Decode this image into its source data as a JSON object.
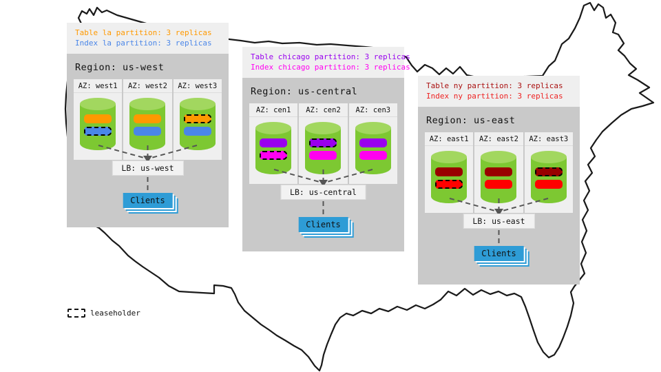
{
  "legend": {
    "label": "leaseholder"
  },
  "clients_label": "Clients",
  "colors": {
    "region_bg": "#c9c9c9",
    "panel_bg": "#efefef",
    "cylinder_body": "#7dc832",
    "cylinder_top": "#a2d75f",
    "clients_blue": "#2e9cd6",
    "connector_gray": "#555555",
    "map_outline": "#1a1a1a",
    "table_la_orange": "#ff9900",
    "index_la_blue": "#4a86e8",
    "table_chicago_purple": "#9900ee",
    "index_chicago_magenta": "#ff00f0",
    "table_ny_dark_red": "#990000",
    "index_ny_red": "#ff0000"
  },
  "regions": [
    {
      "title": "Region: us-west",
      "annotation": [
        {
          "text": "Table la partition: 3 replicas",
          "color": "#ff9900"
        },
        {
          "text": "Index la partition: 3 replicas",
          "color": "#4a86e8"
        }
      ],
      "azs": [
        {
          "label": "AZ: west1",
          "bars": [
            {
              "color": "#ff9900",
              "leaseholder": false
            },
            {
              "color": "#4a86e8",
              "leaseholder": true
            }
          ]
        },
        {
          "label": "AZ: west2",
          "bars": [
            {
              "color": "#ff9900",
              "leaseholder": false
            },
            {
              "color": "#4a86e8",
              "leaseholder": false
            }
          ]
        },
        {
          "label": "AZ: west3",
          "bars": [
            {
              "color": "#ff9900",
              "leaseholder": true
            },
            {
              "color": "#4a86e8",
              "leaseholder": false
            }
          ]
        }
      ],
      "lb_label": "LB: us-west"
    },
    {
      "title": "Region: us-central",
      "annotation": [
        {
          "text": "Table chicago partition: 3 replicas",
          "color": "#9900ee"
        },
        {
          "text": "Index chicago partition: 3 replicas",
          "color": "#ff00f0"
        }
      ],
      "azs": [
        {
          "label": "AZ: cen1",
          "bars": [
            {
              "color": "#9900ee",
              "leaseholder": false
            },
            {
              "color": "#ff00f0",
              "leaseholder": true
            }
          ]
        },
        {
          "label": "AZ: cen2",
          "bars": [
            {
              "color": "#9900ee",
              "leaseholder": true
            },
            {
              "color": "#ff00f0",
              "leaseholder": false
            }
          ]
        },
        {
          "label": "AZ: cen3",
          "bars": [
            {
              "color": "#9900ee",
              "leaseholder": false
            },
            {
              "color": "#ff00f0",
              "leaseholder": false
            }
          ]
        }
      ],
      "lb_label": "LB: us-central"
    },
    {
      "title": "Region: us-east",
      "annotation": [
        {
          "text": "Table ny partition: 3 replicas",
          "color": "#aa1111"
        },
        {
          "text": "Index ny partition: 3 replicas",
          "color": "#ee2222"
        }
      ],
      "azs": [
        {
          "label": "AZ: east1",
          "bars": [
            {
              "color": "#990000",
              "leaseholder": false
            },
            {
              "color": "#ff0000",
              "leaseholder": true
            }
          ]
        },
        {
          "label": "AZ: east2",
          "bars": [
            {
              "color": "#990000",
              "leaseholder": false
            },
            {
              "color": "#ff0000",
              "leaseholder": false
            }
          ]
        },
        {
          "label": "AZ: east3",
          "bars": [
            {
              "color": "#990000",
              "leaseholder": true
            },
            {
              "color": "#ff0000",
              "leaseholder": false
            }
          ]
        }
      ],
      "lb_label": "LB: us-east"
    }
  ]
}
